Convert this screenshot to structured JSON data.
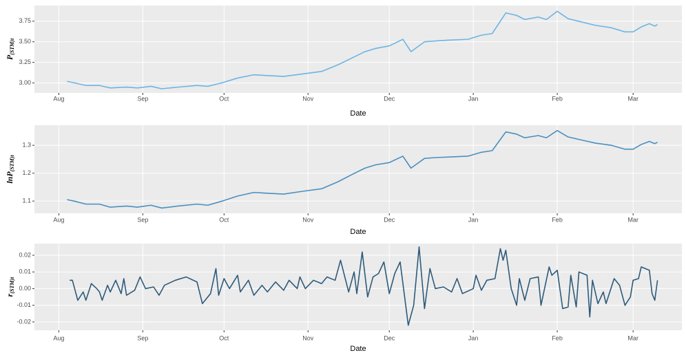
{
  "chart_data": [
    {
      "type": "line",
      "ylabel": [
        "P",
        "(STM)t"
      ],
      "xlabel": "Date",
      "color": "#6cb4e4",
      "grid": true,
      "x": [
        3,
        6,
        10,
        15,
        19,
        25,
        29,
        34,
        38,
        44,
        51,
        55,
        60,
        66,
        72,
        77,
        83,
        90,
        97,
        103,
        108,
        113,
        117,
        122,
        127,
        130,
        135,
        139,
        144,
        151,
        156,
        160,
        165,
        169,
        172,
        177,
        180,
        184,
        188,
        193,
        198,
        204,
        209,
        212,
        215,
        218,
        220,
        221
      ],
      "values": [
        3.02,
        3.0,
        2.97,
        2.97,
        2.94,
        2.95,
        2.94,
        2.96,
        2.93,
        2.95,
        2.97,
        2.96,
        3.0,
        3.06,
        3.1,
        3.09,
        3.08,
        3.11,
        3.14,
        3.22,
        3.3,
        3.38,
        3.42,
        3.45,
        3.53,
        3.38,
        3.5,
        3.51,
        3.52,
        3.53,
        3.58,
        3.6,
        3.85,
        3.82,
        3.77,
        3.8,
        3.77,
        3.87,
        3.78,
        3.74,
        3.7,
        3.67,
        3.62,
        3.62,
        3.68,
        3.72,
        3.69,
        3.71
      ],
      "xlim": [
        -9,
        230
      ],
      "xticks": [
        {
          "value": 0,
          "label": "Aug"
        },
        {
          "value": 31,
          "label": "Sep"
        },
        {
          "value": 61,
          "label": "Oct"
        },
        {
          "value": 92,
          "label": "Nov"
        },
        {
          "value": 122,
          "label": "Dec"
        },
        {
          "value": 153,
          "label": "Jan"
        },
        {
          "value": 184,
          "label": "Feb"
        },
        {
          "value": 212,
          "label": "Mar"
        }
      ],
      "ylim": [
        2.88,
        3.94
      ],
      "yticks": [
        {
          "value": 3,
          "label": "3.00"
        },
        3.25,
        {
          "value": 3.5,
          "label": "3.50"
        },
        3.75
      ]
    },
    {
      "type": "line",
      "ylabel": [
        "lnP",
        "(STM)t"
      ],
      "xlabel": "Date",
      "color": "#4a8fbf",
      "grid": true,
      "x": [
        3,
        6,
        10,
        15,
        19,
        25,
        29,
        34,
        38,
        44,
        51,
        55,
        60,
        66,
        72,
        77,
        83,
        90,
        97,
        103,
        108,
        113,
        117,
        122,
        127,
        130,
        135,
        139,
        144,
        151,
        156,
        160,
        165,
        169,
        172,
        177,
        180,
        184,
        188,
        193,
        198,
        204,
        209,
        212,
        215,
        218,
        220,
        221
      ],
      "values": [
        1.105,
        1.099,
        1.089,
        1.089,
        1.078,
        1.082,
        1.078,
        1.085,
        1.075,
        1.082,
        1.089,
        1.085,
        1.099,
        1.118,
        1.131,
        1.128,
        1.125,
        1.135,
        1.144,
        1.169,
        1.194,
        1.218,
        1.23,
        1.238,
        1.261,
        1.218,
        1.253,
        1.256,
        1.258,
        1.261,
        1.275,
        1.281,
        1.348,
        1.34,
        1.327,
        1.335,
        1.327,
        1.353,
        1.33,
        1.319,
        1.308,
        1.3,
        1.286,
        1.286,
        1.303,
        1.314,
        1.306,
        1.311
      ],
      "xlim": [
        -9,
        230
      ],
      "xticks": [
        {
          "value": 0,
          "label": "Aug"
        },
        {
          "value": 31,
          "label": "Sep"
        },
        {
          "value": 61,
          "label": "Oct"
        },
        {
          "value": 92,
          "label": "Nov"
        },
        {
          "value": 122,
          "label": "Dec"
        },
        {
          "value": 153,
          "label": "Jan"
        },
        {
          "value": 184,
          "label": "Feb"
        },
        {
          "value": 212,
          "label": "Mar"
        }
      ],
      "ylim": [
        1.056,
        1.372
      ],
      "yticks": [
        1.1,
        1.2,
        1.3
      ]
    },
    {
      "type": "line",
      "ylabel": [
        "r",
        "(STM)t"
      ],
      "xlabel": "Date",
      "color": "#2d5a7a",
      "grid": true,
      "x": [
        4,
        5,
        7,
        9,
        10,
        12,
        14,
        15,
        16,
        18,
        19,
        21,
        23,
        24,
        25,
        28,
        30,
        32,
        35,
        37,
        39,
        43,
        47,
        51,
        53,
        56,
        58,
        59,
        61,
        63,
        66,
        67,
        70,
        72,
        75,
        77,
        80,
        83,
        85,
        88,
        89,
        91,
        94,
        97,
        99,
        102,
        104,
        107,
        109,
        110,
        112,
        114,
        116,
        118,
        120,
        122,
        124,
        126,
        129,
        131,
        133,
        135,
        137,
        139,
        142,
        145,
        147,
        149,
        153,
        154,
        156,
        158,
        161,
        163,
        164,
        165,
        167,
        169,
        170,
        172,
        174,
        177,
        178,
        181,
        182,
        184,
        186,
        188,
        189,
        191,
        192,
        195,
        196,
        197,
        199,
        201,
        202,
        205,
        207,
        209,
        211,
        212,
        214,
        215,
        218,
        219,
        220,
        221
      ],
      "values": [
        0.005,
        0.005,
        -0.007,
        -0.002,
        -0.007,
        0.003,
        0.0,
        -0.002,
        -0.007,
        0.002,
        -0.002,
        0.005,
        -0.003,
        0.006,
        -0.004,
        -0.001,
        0.007,
        0.0,
        0.001,
        -0.004,
        0.002,
        0.005,
        0.007,
        0.004,
        -0.009,
        -0.003,
        0.012,
        -0.004,
        0.006,
        0.0,
        0.008,
        -0.002,
        0.005,
        -0.004,
        0.002,
        -0.002,
        0.004,
        -0.001,
        0.005,
        0.0,
        0.007,
        0.0,
        0.005,
        0.003,
        0.007,
        0.005,
        0.017,
        -0.002,
        0.01,
        -0.003,
        0.022,
        -0.005,
        0.007,
        0.009,
        0.016,
        -0.003,
        0.009,
        0.016,
        -0.022,
        -0.01,
        0.025,
        -0.012,
        0.012,
        0.0,
        0.001,
        -0.002,
        0.006,
        -0.003,
        0.0,
        0.008,
        -0.001,
        0.005,
        0.006,
        0.024,
        0.017,
        0.023,
        0.0,
        -0.01,
        0.006,
        -0.007,
        0.006,
        0.007,
        -0.01,
        0.013,
        0.008,
        0.011,
        -0.012,
        -0.011,
        0.008,
        -0.011,
        0.01,
        0.008,
        -0.017,
        0.005,
        -0.009,
        -0.002,
        -0.009,
        0.006,
        0.002,
        -0.01,
        -0.005,
        0.005,
        0.006,
        0.013,
        0.011,
        -0.003,
        -0.007,
        0.005
      ],
      "xlim": [
        -9,
        230
      ],
      "xticks": [
        {
          "value": 0,
          "label": "Aug"
        },
        {
          "value": 31,
          "label": "Sep"
        },
        {
          "value": 61,
          "label": "Oct"
        },
        {
          "value": 92,
          "label": "Nov"
        },
        {
          "value": 122,
          "label": "Dec"
        },
        {
          "value": 153,
          "label": "Jan"
        },
        {
          "value": 184,
          "label": "Feb"
        },
        {
          "value": 212,
          "label": "Mar"
        }
      ],
      "ylim": [
        -0.025,
        0.027
      ],
      "yticks": [
        -0.02,
        -0.01,
        {
          "value": 0,
          "label": "0.00"
        },
        0.01,
        0.02
      ]
    }
  ]
}
